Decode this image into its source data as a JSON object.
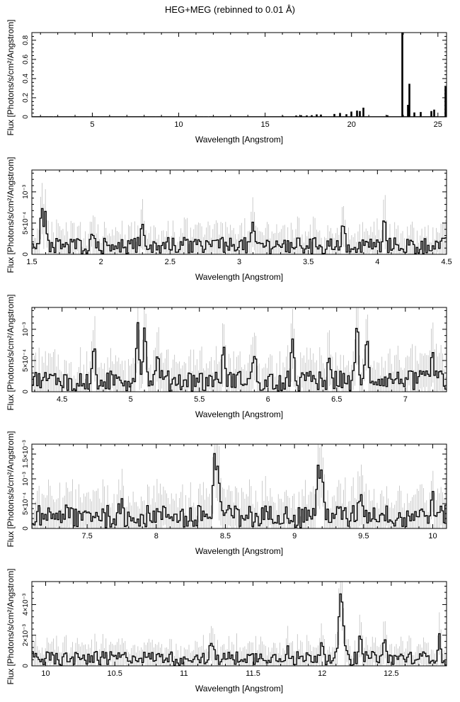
{
  "figure": {
    "title": "HEG+MEG (rebinned to 0.01 Å)"
  },
  "chart_data": [
    {
      "type": "line",
      "xlabel": "Wavelength [Angstrom]",
      "ylabel": "Flux [Photons/s/cm²/Angstrom]",
      "xlim": [
        1.5,
        25.5
      ],
      "ylim": [
        0,
        0.88
      ],
      "xticks": [
        5,
        10,
        15,
        20,
        25
      ],
      "xtick_labels": [
        "5",
        "10",
        "15",
        "20",
        "25"
      ],
      "yticks": [
        0,
        0.2,
        0.4,
        0.6,
        0.8
      ],
      "ytick_labels": [
        "0",
        "0.2",
        "0.4",
        "0.6",
        "0.8"
      ],
      "noise_level": 0.0004,
      "show_errors": false,
      "lines": [
        [
          16.0,
          0.004
        ],
        [
          16.8,
          0.008
        ],
        [
          17.1,
          0.012
        ],
        [
          17.4,
          0.009
        ],
        [
          17.7,
          0.012
        ],
        [
          18.0,
          0.02
        ],
        [
          18.25,
          0.018
        ],
        [
          19.0,
          0.025
        ],
        [
          19.35,
          0.035
        ],
        [
          19.7,
          0.022
        ],
        [
          20.0,
          0.05
        ],
        [
          20.3,
          0.06
        ],
        [
          20.5,
          0.055
        ],
        [
          20.7,
          0.09
        ],
        [
          22.1,
          0.012
        ],
        [
          22.95,
          0.88
        ],
        [
          23.25,
          0.12
        ],
        [
          23.35,
          0.34
        ],
        [
          23.65,
          0.04
        ],
        [
          24.0,
          0.045
        ],
        [
          24.6,
          0.055
        ],
        [
          24.8,
          0.07
        ],
        [
          25.45,
          0.31
        ]
      ]
    },
    {
      "type": "line",
      "xlabel": "Wavelength [Angstrom]",
      "ylabel": "Flux [Photons/s/cm²/Angstrom]",
      "xlim": [
        1.5,
        4.5
      ],
      "ylim": [
        0,
        0.00135
      ],
      "xticks": [
        1.5,
        2,
        2.5,
        3,
        3.5,
        4,
        4.5
      ],
      "xtick_labels": [
        "1.5",
        "2",
        "2.5",
        "3",
        "3.5",
        "4",
        "4.5"
      ],
      "yticks": [
        0,
        0.0005,
        0.001
      ],
      "ytick_labels": [
        "0",
        "5×10⁻⁴",
        "10⁻³"
      ],
      "noise_level": 0.0002,
      "show_errors": true,
      "lines": [
        [
          1.57,
          0.0006
        ],
        [
          1.6,
          0.00045
        ],
        [
          1.95,
          0.00028
        ],
        [
          2.3,
          0.00022
        ],
        [
          3.1,
          0.00025
        ],
        [
          3.75,
          0.00032
        ],
        [
          4.05,
          0.00035
        ]
      ]
    },
    {
      "type": "line",
      "xlabel": "Wavelength [Angstrom]",
      "ylabel": "Flux [Photons/s/cm²/Angstrom]",
      "xlim": [
        4.28,
        7.3
      ],
      "ylim": [
        0,
        0.00135
      ],
      "xticks": [
        4.5,
        5,
        5.5,
        6,
        6.5,
        7
      ],
      "xtick_labels": [
        "4.5",
        "5",
        "5.5",
        "6",
        "6.5",
        "7"
      ],
      "yticks": [
        0,
        0.0005,
        0.001
      ],
      "ytick_labels": [
        "0",
        "5×10⁻⁴",
        "10⁻³"
      ],
      "noise_level": 0.00025,
      "show_errors": true,
      "lines": [
        [
          4.73,
          0.0005
        ],
        [
          5.05,
          0.0009
        ],
        [
          5.1,
          0.00085
        ],
        [
          5.2,
          0.0004
        ],
        [
          5.68,
          0.0005
        ],
        [
          5.9,
          0.0004
        ],
        [
          6.18,
          0.0006
        ],
        [
          6.45,
          0.0004
        ],
        [
          6.65,
          0.00085
        ],
        [
          6.72,
          0.0006
        ],
        [
          7.2,
          0.0004
        ]
      ]
    },
    {
      "type": "line",
      "xlabel": "Wavelength [Angstrom]",
      "ylabel": "Flux [Photons/s/cm²/Angstrom]",
      "xlim": [
        7.1,
        10.1
      ],
      "ylim": [
        0,
        0.0017
      ],
      "xticks": [
        7.5,
        8,
        8.5,
        9,
        9.5,
        10
      ],
      "xtick_labels": [
        "7.5",
        "8",
        "8.5",
        "9",
        "9.5",
        "10"
      ],
      "yticks": [
        0,
        0.0005,
        0.001,
        0.0015
      ],
      "ytick_labels": [
        "0",
        "5×10⁻⁴",
        "10⁻³",
        "1.5×10⁻³"
      ],
      "noise_level": 0.00035,
      "show_errors": true,
      "lines": [
        [
          7.75,
          0.00035
        ],
        [
          8.42,
          0.0013
        ],
        [
          8.45,
          0.001
        ],
        [
          9.17,
          0.00095
        ],
        [
          9.2,
          0.00075
        ],
        [
          9.48,
          0.00055
        ],
        [
          10.0,
          0.0003
        ]
      ]
    },
    {
      "type": "line",
      "xlabel": "Wavelength [Angstrom]",
      "ylabel": "Flux [Photons/s/cm²/Angstrom]",
      "xlim": [
        9.9,
        12.9
      ],
      "ylim": [
        0,
        0.0055
      ],
      "xticks": [
        10,
        10.5,
        11,
        11.5,
        12,
        12.5
      ],
      "xtick_labels": [
        "10",
        "10.5",
        "11",
        "11.5",
        "12",
        "12.5"
      ],
      "yticks": [
        0,
        0.002,
        0.004
      ],
      "ytick_labels": [
        "0",
        "2×10⁻³",
        "4×10⁻³"
      ],
      "noise_level": 0.0007,
      "show_errors": true,
      "lines": [
        [
          11.2,
          0.001
        ],
        [
          11.75,
          0.0008
        ],
        [
          12.0,
          0.0014
        ],
        [
          12.13,
          0.0032
        ],
        [
          12.15,
          0.0025
        ],
        [
          12.28,
          0.0016
        ],
        [
          12.45,
          0.001
        ],
        [
          12.85,
          0.0012
        ]
      ]
    }
  ]
}
